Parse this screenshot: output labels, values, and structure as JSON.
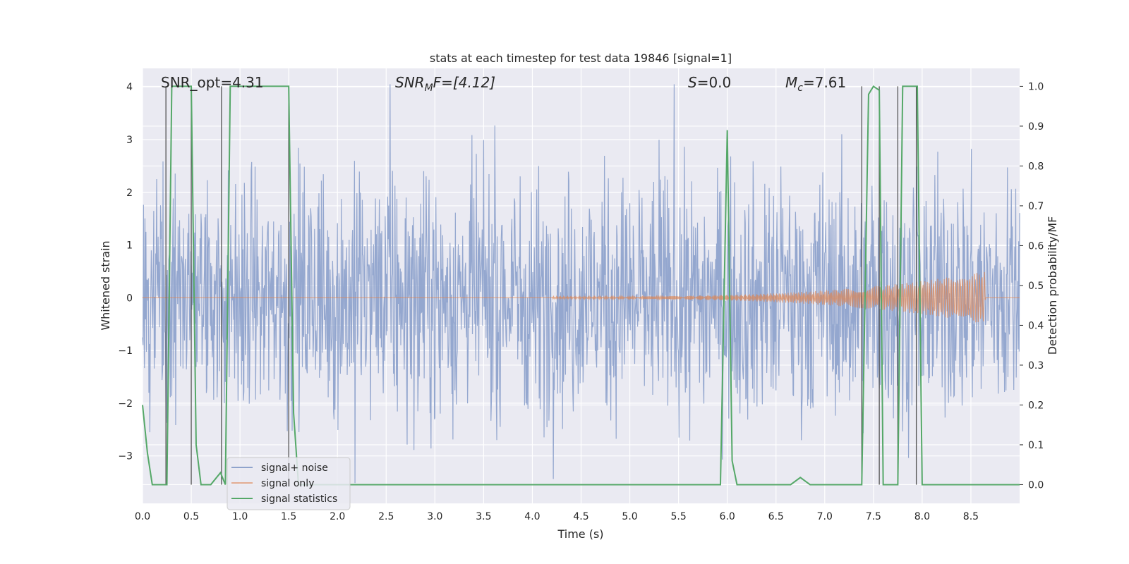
{
  "chart_data": {
    "type": "line",
    "title": "stats at each timestep for test data 19846 [signal=1]",
    "xlabel": "Time (s)",
    "ylabel": "Whitened strain",
    "ylabel_right": "Detection probability/MF",
    "xlim": [
      0.0,
      9.0
    ],
    "ylim": [
      -3.9,
      4.35
    ],
    "ylim_right": [
      -0.047,
      1.045
    ],
    "x_ticks": [
      "0.0",
      "0.5",
      "1.0",
      "1.5",
      "2.0",
      "2.5",
      "3.0",
      "3.5",
      "4.0",
      "4.5",
      "5.0",
      "5.5",
      "6.0",
      "6.5",
      "7.0",
      "7.5",
      "8.0",
      "8.5"
    ],
    "y_ticks": [
      "4",
      "3",
      "2",
      "1",
      "0",
      "−1",
      "−2",
      "−3"
    ],
    "y_ticks_right": [
      "1.0",
      "0.9",
      "0.8",
      "0.7",
      "0.6",
      "0.5",
      "0.4",
      "0.3",
      "0.2",
      "0.1",
      "0.0"
    ],
    "grid": true,
    "legend_position": "bottom-left",
    "annotations": {
      "snr_opt": "SNR_opt=4.31",
      "snr_mf_prefix": "SNR",
      "snr_mf_sub": "M",
      "snr_mf_suffix": "F=[4.12]",
      "s_prefix": "S",
      "s_suffix": "=0.0",
      "mc_prefix": "M",
      "mc_sub": "c",
      "mc_suffix": "=7.61"
    },
    "series": [
      {
        "name": "signal+ noise",
        "color": "#8fa3cc",
        "description": "whitened strain, noisy band roughly -2.5 to 2.5 with spikes to about 4 and -3.5"
      },
      {
        "name": "signal only",
        "color": "#dd8452",
        "envelope_start": 4.2,
        "envelope_end": 8.65,
        "peak_amplitude": 0.48
      },
      {
        "name": "signal statistics",
        "color": "#55a868",
        "x": [
          0.0,
          0.05,
          0.1,
          0.2,
          0.25,
          0.3,
          0.5,
          0.55,
          0.6,
          0.7,
          0.8,
          0.85,
          0.9,
          1.0,
          1.5,
          1.55,
          1.6,
          1.7,
          1.8,
          1.9,
          2.0,
          3.0,
          4.0,
          5.0,
          5.93,
          6.0,
          6.05,
          6.1,
          6.2,
          6.5,
          6.65,
          6.75,
          6.85,
          7.0,
          7.38,
          7.45,
          7.5,
          7.56,
          7.6,
          7.7,
          7.75,
          7.8,
          7.85,
          7.95,
          8.0,
          8.5,
          9.0
        ],
        "values": [
          0.2,
          0.08,
          0.0,
          0.0,
          0.0,
          1.0,
          1.0,
          0.1,
          0.0,
          0.0,
          0.03,
          0.0,
          1.0,
          1.0,
          1.0,
          0.18,
          0.0,
          0.0,
          0.0,
          0.0,
          0.0,
          0.0,
          0.0,
          0.0,
          0.0,
          0.89,
          0.06,
          0.0,
          0.0,
          0.0,
          0.0,
          0.018,
          0.0,
          0.0,
          0.0,
          0.98,
          1.0,
          0.99,
          0.0,
          0.0,
          0.0,
          1.0,
          1.0,
          1.0,
          0.0,
          0.0,
          0.0
        ]
      }
    ],
    "vertical_markers": [
      0.24,
      0.5,
      0.81,
      1.5,
      7.38,
      7.56,
      7.75,
      7.94
    ]
  },
  "colors": {
    "background": "#eaeaf2",
    "grid": "#ffffff",
    "noise": "#8fa3cc",
    "signal": "#dd8452",
    "stats": "#55a868",
    "marker": "#555555"
  }
}
